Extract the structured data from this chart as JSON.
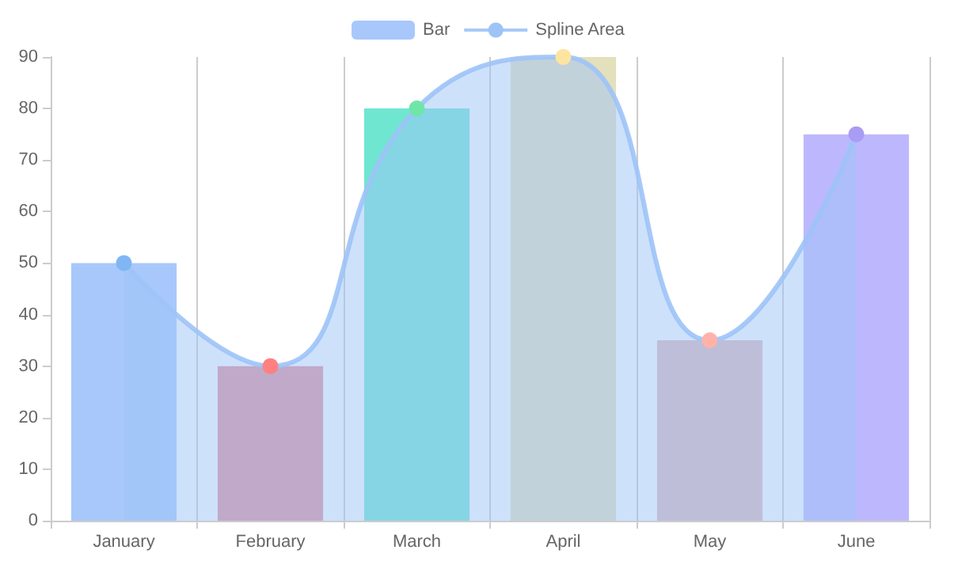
{
  "chart_data": {
    "type": "bar",
    "categories": [
      "January",
      "February",
      "March",
      "April",
      "May",
      "June"
    ],
    "series": [
      {
        "name": "Bar",
        "color": "#a8c8fb",
        "colors": [
          "#a8c8fb",
          "#e58f9a",
          "#6fe6d0",
          "#e4e0bc",
          "#dfb8b8",
          "#bdb8fd"
        ],
        "values": [
          50,
          30,
          80,
          90,
          35,
          75
        ]
      },
      {
        "name": "Spline Area",
        "type": "area",
        "color": "#9dc3f7",
        "colors": [
          "#80b6f4",
          "#ff8080",
          "#6fe6a8",
          "#fde4a0",
          "#ffb3a8",
          "#a89cf5"
        ],
        "values": [
          50,
          30,
          80,
          90,
          35,
          75
        ]
      }
    ],
    "ylim": [
      0,
      90
    ],
    "yticks": [
      0,
      10,
      20,
      30,
      40,
      50,
      60,
      70,
      80,
      90
    ],
    "grid": "x",
    "legend": "top",
    "marker": "circle"
  }
}
